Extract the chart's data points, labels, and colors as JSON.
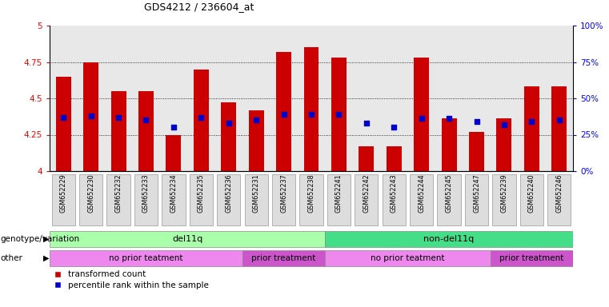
{
  "title": "GDS4212 / 236604_at",
  "samples": [
    "GSM652229",
    "GSM652230",
    "GSM652232",
    "GSM652233",
    "GSM652234",
    "GSM652235",
    "GSM652236",
    "GSM652231",
    "GSM652237",
    "GSM652238",
    "GSM652241",
    "GSM652242",
    "GSM652243",
    "GSM652244",
    "GSM652245",
    "GSM652247",
    "GSM652239",
    "GSM652240",
    "GSM652246"
  ],
  "bar_values": [
    4.65,
    4.75,
    4.55,
    4.55,
    4.25,
    4.7,
    4.47,
    4.42,
    4.82,
    4.85,
    4.78,
    4.17,
    4.17,
    4.78,
    4.36,
    4.27,
    4.36,
    4.58,
    4.58
  ],
  "dot_values": [
    4.37,
    4.38,
    4.37,
    4.35,
    4.3,
    4.37,
    4.33,
    4.35,
    4.39,
    4.39,
    4.39,
    4.33,
    4.3,
    4.36,
    4.36,
    4.34,
    4.32,
    4.34,
    4.35
  ],
  "bar_color": "#cc0000",
  "dot_color": "#0000cc",
  "ylim": [
    4.0,
    5.0
  ],
  "yticks": [
    4.0,
    4.25,
    4.5,
    4.75,
    5.0
  ],
  "ytick_labels": [
    "4",
    "4.25",
    "4.5",
    "4.75",
    "5"
  ],
  "right_yticks": [
    0,
    25,
    50,
    75,
    100
  ],
  "right_ytick_labels": [
    "0%",
    "25%",
    "50%",
    "75%",
    "100%"
  ],
  "grid_values": [
    4.25,
    4.5,
    4.75
  ],
  "genotype_groups": [
    {
      "label": "del11q",
      "start": 0,
      "end": 9,
      "color": "#aaffaa"
    },
    {
      "label": "non-del11q",
      "start": 10,
      "end": 18,
      "color": "#44dd88"
    }
  ],
  "treatment_groups": [
    {
      "label": "no prior teatment",
      "start": 0,
      "end": 6,
      "color": "#ee88ee"
    },
    {
      "label": "prior treatment",
      "start": 7,
      "end": 9,
      "color": "#cc55cc"
    },
    {
      "label": "no prior teatment",
      "start": 10,
      "end": 15,
      "color": "#ee88ee"
    },
    {
      "label": "prior treatment",
      "start": 16,
      "end": 18,
      "color": "#cc55cc"
    }
  ],
  "row_labels": [
    "genotype/variation",
    "other"
  ],
  "legend_items": [
    "transformed count",
    "percentile rank within the sample"
  ],
  "bg_color": "#ffffff",
  "plot_bg": "#e8e8e8",
  "bar_width": 0.55,
  "dot_size": 22
}
